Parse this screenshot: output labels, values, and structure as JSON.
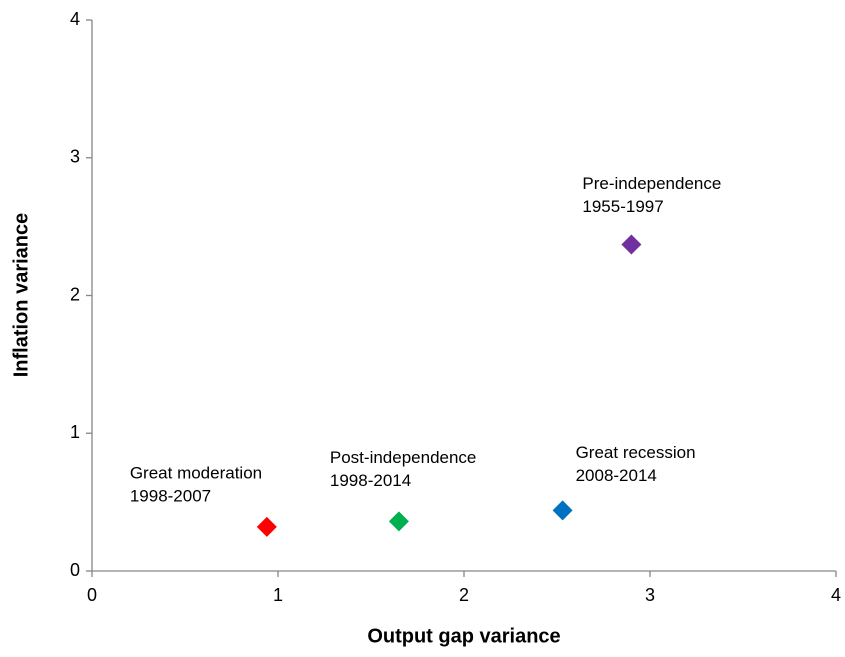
{
  "chart_data": {
    "type": "scatter",
    "x_label": "Output gap variance",
    "y_label": "Inflation variance",
    "xlim": [
      0,
      4
    ],
    "xticks": [
      0,
      1,
      2,
      3,
      4
    ],
    "ylim": [
      0,
      4
    ],
    "yticks": [
      0,
      1,
      2,
      3,
      4
    ],
    "grid": false,
    "marker": "diamond",
    "series": [
      {
        "name": "Great moderation",
        "period": "1998-2007",
        "color": "#ff0000",
        "x": [
          0.94
        ],
        "values": [
          0.32
        ]
      },
      {
        "name": "Post-independence",
        "period": "1998-2014",
        "color": "#00b050",
        "x": [
          1.65
        ],
        "values": [
          0.36
        ]
      },
      {
        "name": "Great recession",
        "period": "2008-2014",
        "color": "#0070c0",
        "x": [
          2.53
        ],
        "values": [
          0.44
        ]
      },
      {
        "name": "Pre-independence",
        "period": "1955-1997",
        "color": "#7030a0",
        "x": [
          2.9
        ],
        "values": [
          2.37
        ]
      }
    ]
  }
}
